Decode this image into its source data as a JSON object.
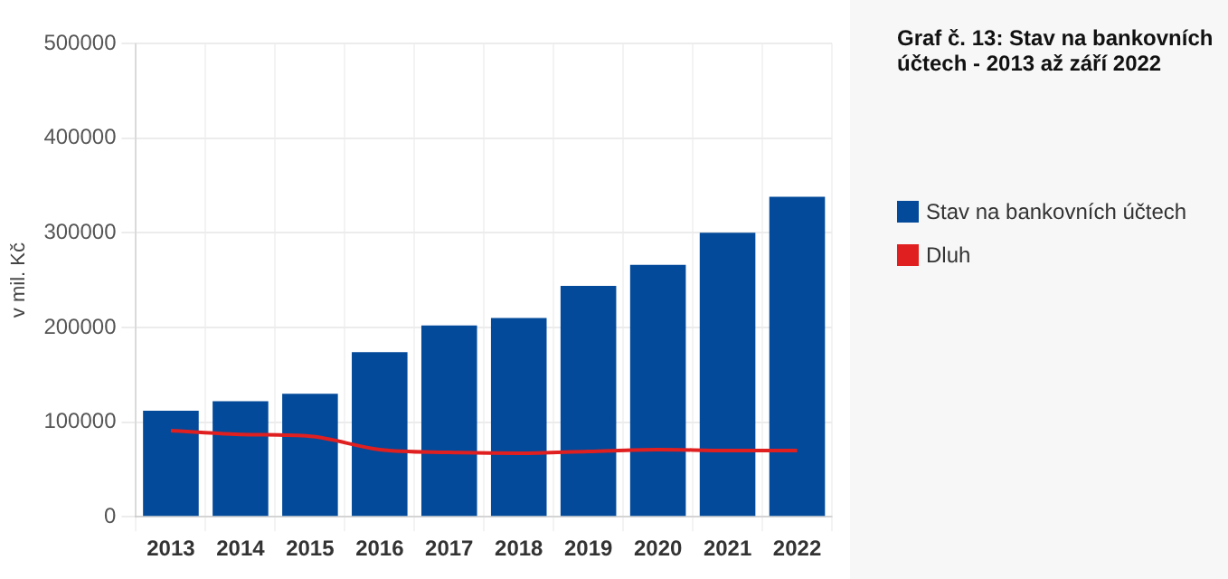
{
  "chart_data": {
    "type": "bar",
    "title": "Graf č. 13: Stav na bankovních účtech - 2013 až září 2022",
    "ylabel": "v mil. Kč",
    "categories": [
      "2013",
      "2014",
      "2015",
      "2016",
      "2017",
      "2018",
      "2019",
      "2020",
      "2021",
      "2022"
    ],
    "series": [
      {
        "name": "Stav na bankovních účtech",
        "color": "#034a9a",
        "values": [
          112000,
          122000,
          130000,
          174000,
          202000,
          210000,
          244000,
          266000,
          300000,
          338000
        ]
      },
      {
        "name": "Dluh",
        "type": "line",
        "color": "#e02020",
        "values": [
          91000,
          87000,
          85000,
          71000,
          68000,
          67000,
          69000,
          71000,
          70000,
          70000
        ]
      }
    ],
    "ylim": [
      0,
      500000
    ],
    "yticks": [
      0,
      100000,
      200000,
      300000,
      400000,
      500000
    ],
    "grid": true,
    "legend": "right",
    "marker": "none"
  }
}
